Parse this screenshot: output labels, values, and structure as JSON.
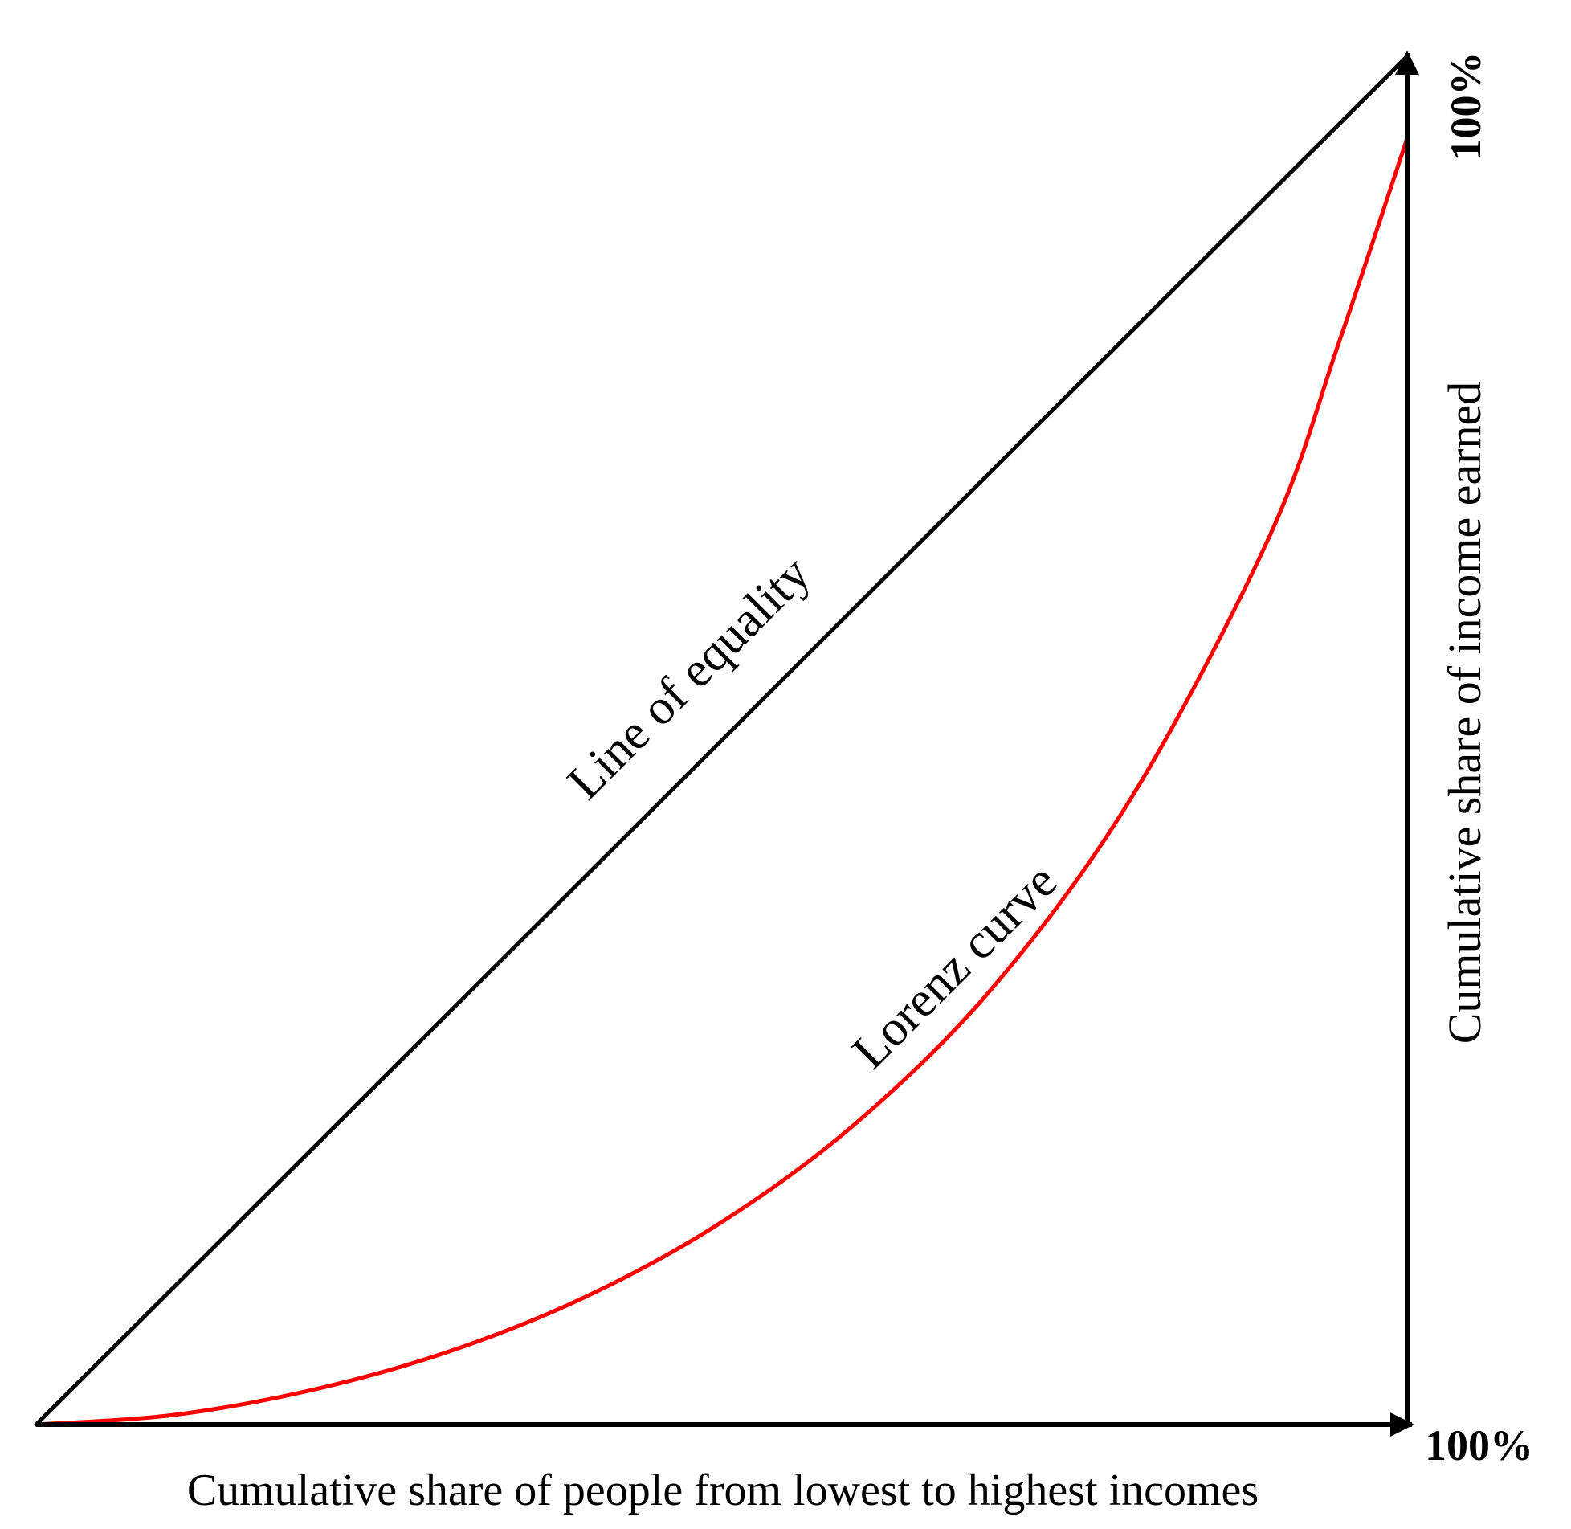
{
  "chart_data": {
    "type": "line",
    "title": "",
    "xlabel": "Cumulative share of people from lowest to highest incomes",
    "ylabel": "Cumulative share of income earned",
    "x_end_label": "100%",
    "y_end_label": "100%",
    "xlim": [
      0,
      100
    ],
    "ylim": [
      0,
      100
    ],
    "grid": false,
    "legend": "none",
    "series": [
      {
        "name": "Line of equality",
        "color": "#000000",
        "x": [
          0,
          100
        ],
        "y": [
          0,
          100
        ]
      },
      {
        "name": "Lorenz curve",
        "color": "#ff0000",
        "x": [
          0,
          10,
          20,
          30,
          40,
          50,
          60,
          70,
          80,
          90,
          95,
          100
        ],
        "y": [
          0,
          0.7,
          2.5,
          5.3,
          9.3,
          14.8,
          22.2,
          32.2,
          46,
          65,
          79,
          94
        ]
      }
    ]
  }
}
